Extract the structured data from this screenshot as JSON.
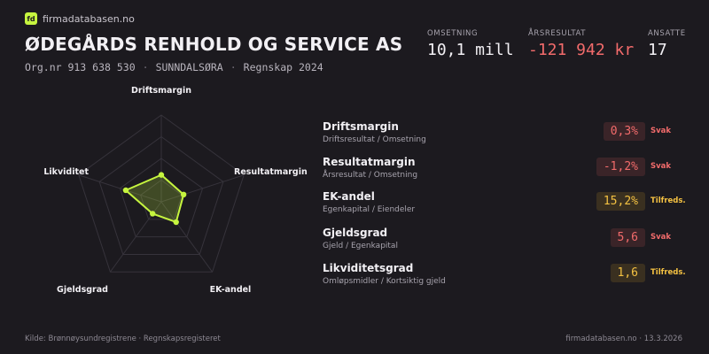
{
  "brand": {
    "logo_text": "fd",
    "name": "firmadatabasen.no"
  },
  "company": {
    "name": "ØDEGÅRDS RENHOLD OG SERVICE AS",
    "orgnr": "Org.nr 913 638 530",
    "location": "SUNNDALSØRA",
    "period": "Regnskap 2024",
    "separator": "·"
  },
  "kpis": [
    {
      "label": "OMSETNING",
      "value": "10,1 mill",
      "negative": false
    },
    {
      "label": "ÅRSRESULTAT",
      "value": "-121 942 kr",
      "negative": true
    },
    {
      "label": "ANSATTE",
      "value": "17",
      "negative": false
    }
  ],
  "chart_data": {
    "type": "radar",
    "axes": [
      "Driftsmargin",
      "Resultatmargin",
      "EK-andel",
      "Gjeldsgrad",
      "Likviditet"
    ],
    "scores": [
      0.31,
      0.27,
      0.29,
      0.17,
      0.43
    ],
    "rings": 4,
    "colors": {
      "line": "#c6f53f",
      "fill": "#c6f53f",
      "grid": "#36333b"
    }
  },
  "metrics": [
    {
      "name": "Driftsmargin",
      "formula": "Driftsresultat / Omsetning",
      "value": "0,3%",
      "status": "Svak",
      "level": "weak"
    },
    {
      "name": "Resultatmargin",
      "formula": "Årsresultat / Omsetning",
      "value": "-1,2%",
      "status": "Svak",
      "level": "weak"
    },
    {
      "name": "EK-andel",
      "formula": "Egenkapital / Eiendeler",
      "value": "15,2%",
      "status": "Tilfreds.",
      "level": "ok"
    },
    {
      "name": "Gjeldsgrad",
      "formula": "Gjeld / Egenkapital",
      "value": "5,6",
      "status": "Svak",
      "level": "weak"
    },
    {
      "name": "Likviditetsgrad",
      "formula": "Omløpsmidler / Kortsiktig gjeld",
      "value": "1,6",
      "status": "Tilfreds.",
      "level": "ok"
    }
  ],
  "footer": {
    "source": "Kilde: Brønnøysundregistrene · Regnskapsregisteret",
    "site_date": "firmadatabasen.no · 13.3.2026"
  },
  "colors": {
    "background": "#1c1a1f",
    "accent": "#c6f53f",
    "weak": "#f26b6b",
    "ok": "#f5c242"
  }
}
